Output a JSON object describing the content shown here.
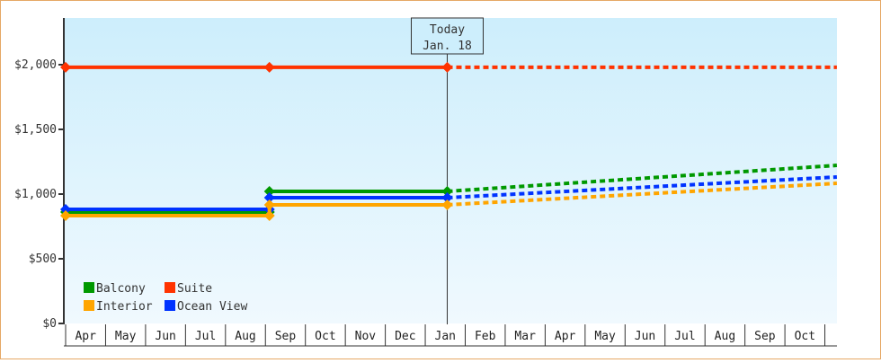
{
  "chart_data": {
    "type": "line",
    "title": "",
    "xlabel": "",
    "ylabel": "",
    "ylim": [
      0,
      2300
    ],
    "y_ticks": [
      {
        "value": 0,
        "label": "$0"
      },
      {
        "value": 500,
        "label": "$500"
      },
      {
        "value": 1000,
        "label": "$1,000"
      },
      {
        "value": 1500,
        "label": "$1,500"
      },
      {
        "value": 2000,
        "label": "$2,000"
      }
    ],
    "x_months": [
      "Apr",
      "May",
      "Jun",
      "Jul",
      "Aug",
      "Sep",
      "Oct",
      "Nov",
      "Dec",
      "Jan",
      "Feb",
      "Mar",
      "Apr",
      "May",
      "Jun",
      "Jul",
      "Aug",
      "Sep",
      "Oct"
    ],
    "today_marker": {
      "line1": "Today",
      "line2": "Jan. 18",
      "month_index": 9.55
    },
    "legend": [
      {
        "name": "Balcony",
        "color": "#009900"
      },
      {
        "name": "Suite",
        "color": "#ff3300"
      },
      {
        "name": "Interior",
        "color": "#ffa500"
      },
      {
        "name": "Ocean View",
        "color": "#0033ff"
      }
    ],
    "series": [
      {
        "name": "Suite",
        "color": "#ff3300",
        "history": [
          {
            "x": 0,
            "y": 1980
          },
          {
            "x": 5.1,
            "y": 1980
          },
          {
            "x": 9.55,
            "y": 1980
          }
        ],
        "forecast": [
          {
            "x": 9.55,
            "y": 1980
          },
          {
            "x": 19.3,
            "y": 1980
          }
        ]
      },
      {
        "name": "Balcony",
        "color": "#009900",
        "history": [
          {
            "x": 0,
            "y": 861
          },
          {
            "x": 5.1,
            "y": 861
          },
          {
            "x": 5.1,
            "y": 1021
          },
          {
            "x": 9.55,
            "y": 1021
          }
        ],
        "forecast": [
          {
            "x": 9.55,
            "y": 1021
          },
          {
            "x": 19.3,
            "y": 1222
          }
        ]
      },
      {
        "name": "Ocean View",
        "color": "#0033ff",
        "history": [
          {
            "x": 0,
            "y": 882
          },
          {
            "x": 5.1,
            "y": 882
          },
          {
            "x": 5.1,
            "y": 972
          },
          {
            "x": 9.55,
            "y": 972
          }
        ],
        "forecast": [
          {
            "x": 9.55,
            "y": 972
          },
          {
            "x": 19.3,
            "y": 1132
          }
        ]
      },
      {
        "name": "Interior",
        "color": "#ffa500",
        "history": [
          {
            "x": 0,
            "y": 833
          },
          {
            "x": 5.1,
            "y": 833
          },
          {
            "x": 5.1,
            "y": 917
          },
          {
            "x": 9.55,
            "y": 917
          }
        ],
        "forecast": [
          {
            "x": 9.55,
            "y": 917
          },
          {
            "x": 19.3,
            "y": 1083
          }
        ]
      }
    ],
    "grid": false,
    "legend_position": "bottom-left inside plot"
  }
}
